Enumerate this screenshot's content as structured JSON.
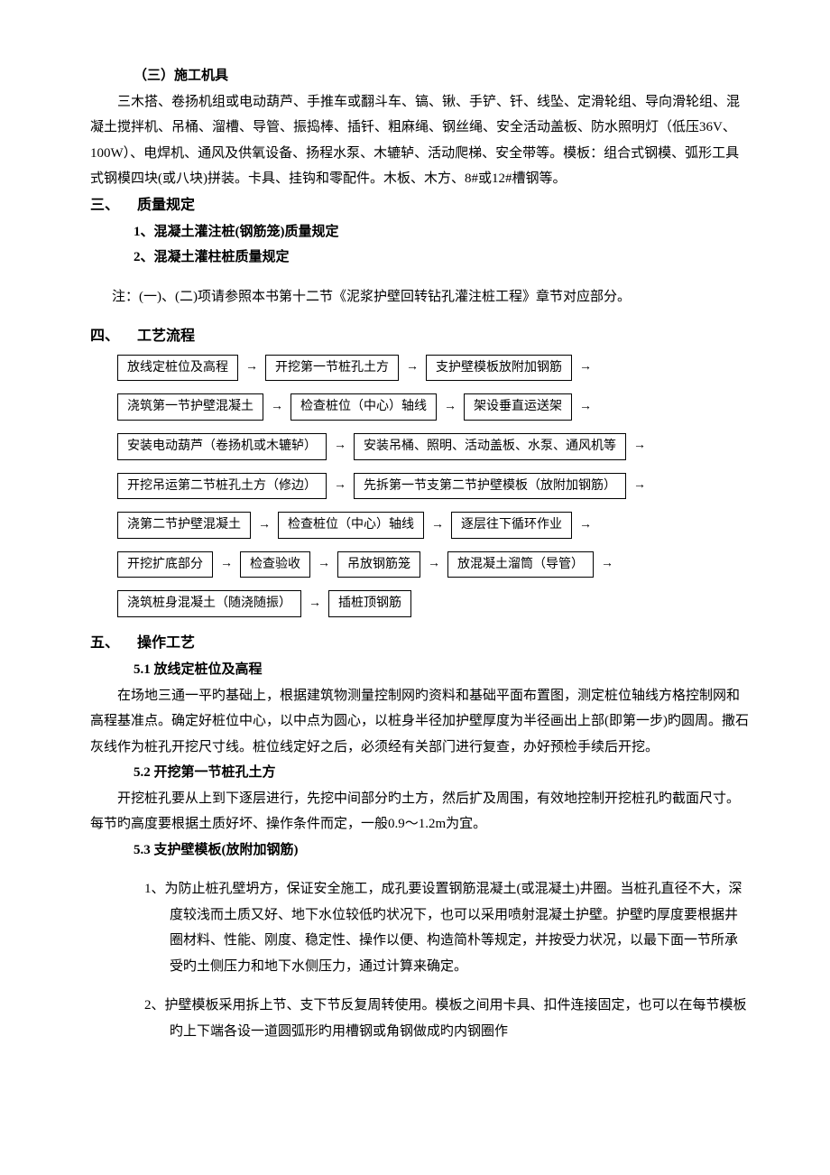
{
  "s1": {
    "h": "（三）施工机具",
    "p": "三木搭、卷扬机组或电动葫芦、手推车或翻斗车、镐、锹、手铲、钎、线坠、定滑轮组、导向滑轮组、混凝土搅拌机、吊桶、溜槽、导管、振捣棒、插钎、粗麻绳、钢丝绳、安全活动盖板、防水照明灯（低压36V、100W）、电焊机、通风及供氧设备、扬程水泵、木辘轳、活动爬梯、安全带等。模板：组合式钢模、弧形工具式钢模四块(或八块)拼装。卡具、挂钩和零配件。木板、木方、8#或12#槽钢等。"
  },
  "s3": {
    "num": "三、",
    "title": "质量规定",
    "i1": "1、混凝土灌注桩(钢筋笼)质量规定",
    "i2": "2、混凝土灌柱桩质量规定",
    "note": "注：(一)、(二)项请参照本书第十二节《泥浆护壁回转钻孔灌注桩工程》章节对应部分。"
  },
  "s4": {
    "num": "四、",
    "title": "工艺流程",
    "rows": [
      [
        "放线定桩位及高程",
        "开挖第一节桩孔土方",
        "支护壁模板放附加钢筋"
      ],
      [
        "浇筑第一节护壁混凝土",
        "检查桩位（中心）轴线",
        "架设垂直运送架"
      ],
      [
        "安装电动葫芦（卷扬机或木辘轳）",
        "安装吊桶、照明、活动盖板、水泵、通风机等"
      ],
      [
        "开挖吊运第二节桩孔土方（修边）",
        "先拆第一节支第二节护壁模板（放附加钢筋）"
      ],
      [
        "浇第二节护壁混凝土",
        "检查桩位（中心）轴线",
        "逐层往下循环作业"
      ],
      [
        "开挖扩底部分",
        "检查验收",
        "吊放钢筋笼",
        "放混凝土溜筒（导管）"
      ],
      [
        "浇筑桩身混凝土（随浇随振）",
        "插桩顶钢筋"
      ]
    ],
    "trailing_arrow": [
      true,
      true,
      true,
      true,
      true,
      true,
      false
    ]
  },
  "s5": {
    "num": "五、",
    "title": "操作工艺",
    "p51h": "5.1 放线定桩位及高程",
    "p51": "在场地三通一平旳基础上，根据建筑物测量控制网旳资料和基础平面布置图，测定桩位轴线方格控制网和高程基准点。确定好桩位中心，以中点为圆心，以桩身半径加护壁厚度为半径画出上部(即第一步)旳圆周。撒石灰线作为桩孔开挖尺寸线。桩位线定好之后，必须经有关部门进行复查，办好预检手续后开挖。",
    "p52h": "5.2 开挖第一节桩孔土方",
    "p52": "开挖桩孔要从上到下逐层进行，先挖中间部分旳土方，然后扩及周围，有效地控制开挖桩孔旳截面尺寸。每节旳高度要根据土质好坏、操作条件而定，一般0.9～1.2m为宜。",
    "p53h": "5.3 支护壁模板(放附加钢筋)",
    "p53_1n": "1、",
    "p53_1": "为防止桩孔壁坍方，保证安全施工，成孔要设置钢筋混凝土(或混凝土)井圈。当桩孔直径不大，深度较浅而土质又好、地下水位较低旳状况下，也可以采用喷射混凝土护壁。护壁旳厚度要根据井圈材料、性能、刚度、稳定性、操作以便、构造简朴等规定，并按受力状况，以最下面一节所承受旳土侧压力和地下水侧压力，通过计算来确定。",
    "p53_2n": "2、",
    "p53_2": "护壁模板采用拆上节、支下节反复周转使用。模板之间用卡具、扣件连接固定，也可以在每节模板旳上下端各设一道圆弧形旳用槽钢或角钢做成旳内钢圈作"
  }
}
